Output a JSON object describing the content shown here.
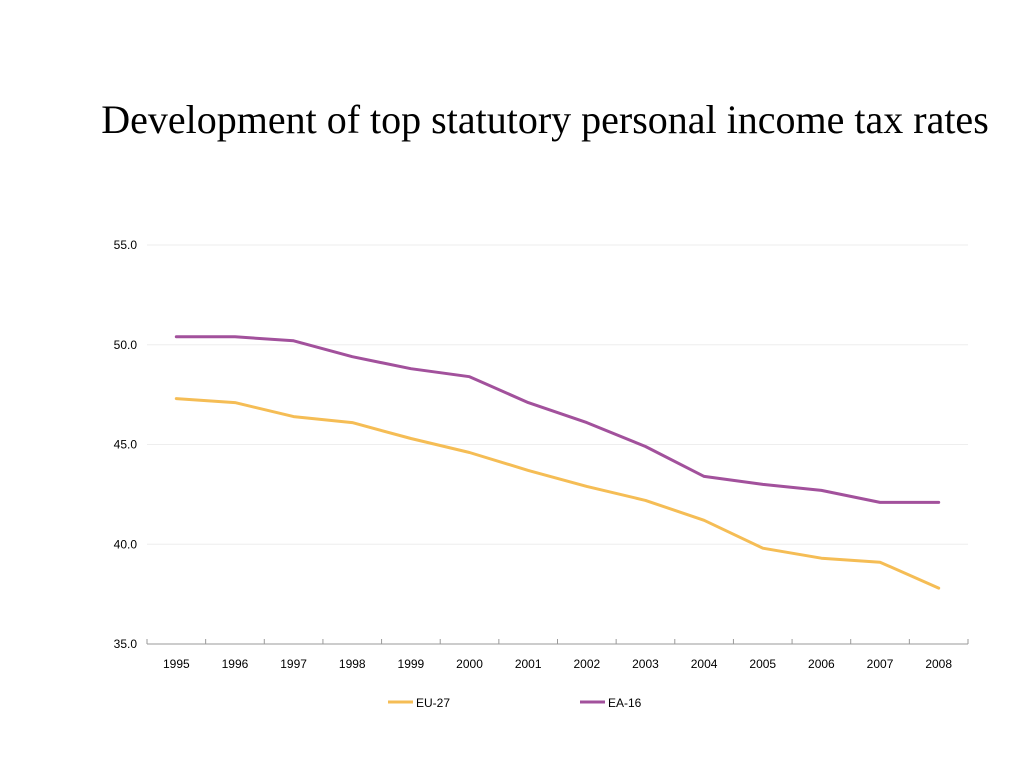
{
  "title": "Development of top statutory personal income tax rates",
  "chart_data": {
    "type": "line",
    "title": "Development of top statutory personal income tax rates",
    "xlabel": "",
    "ylabel": "",
    "x": [
      "1995",
      "1996",
      "1997",
      "1998",
      "1999",
      "2000",
      "2001",
      "2002",
      "2003",
      "2004",
      "2005",
      "2006",
      "2007",
      "2008"
    ],
    "ylim": [
      35.0,
      55.0
    ],
    "yticks": [
      "35.0",
      "40.0",
      "45.0",
      "50.0",
      "55.0"
    ],
    "grid": true,
    "legend": "bottom",
    "series": [
      {
        "name": "EU-27",
        "color": "#f5bd55",
        "values": [
          47.3,
          47.1,
          46.4,
          46.1,
          45.3,
          44.6,
          43.7,
          42.9,
          42.2,
          41.2,
          39.8,
          39.3,
          39.1,
          37.8
        ]
      },
      {
        "name": "EA-16",
        "color": "#a2519c",
        "values": [
          50.4,
          50.4,
          50.2,
          49.4,
          48.8,
          48.4,
          47.1,
          46.1,
          44.9,
          43.4,
          43.0,
          42.7,
          42.1,
          42.1
        ]
      }
    ]
  }
}
